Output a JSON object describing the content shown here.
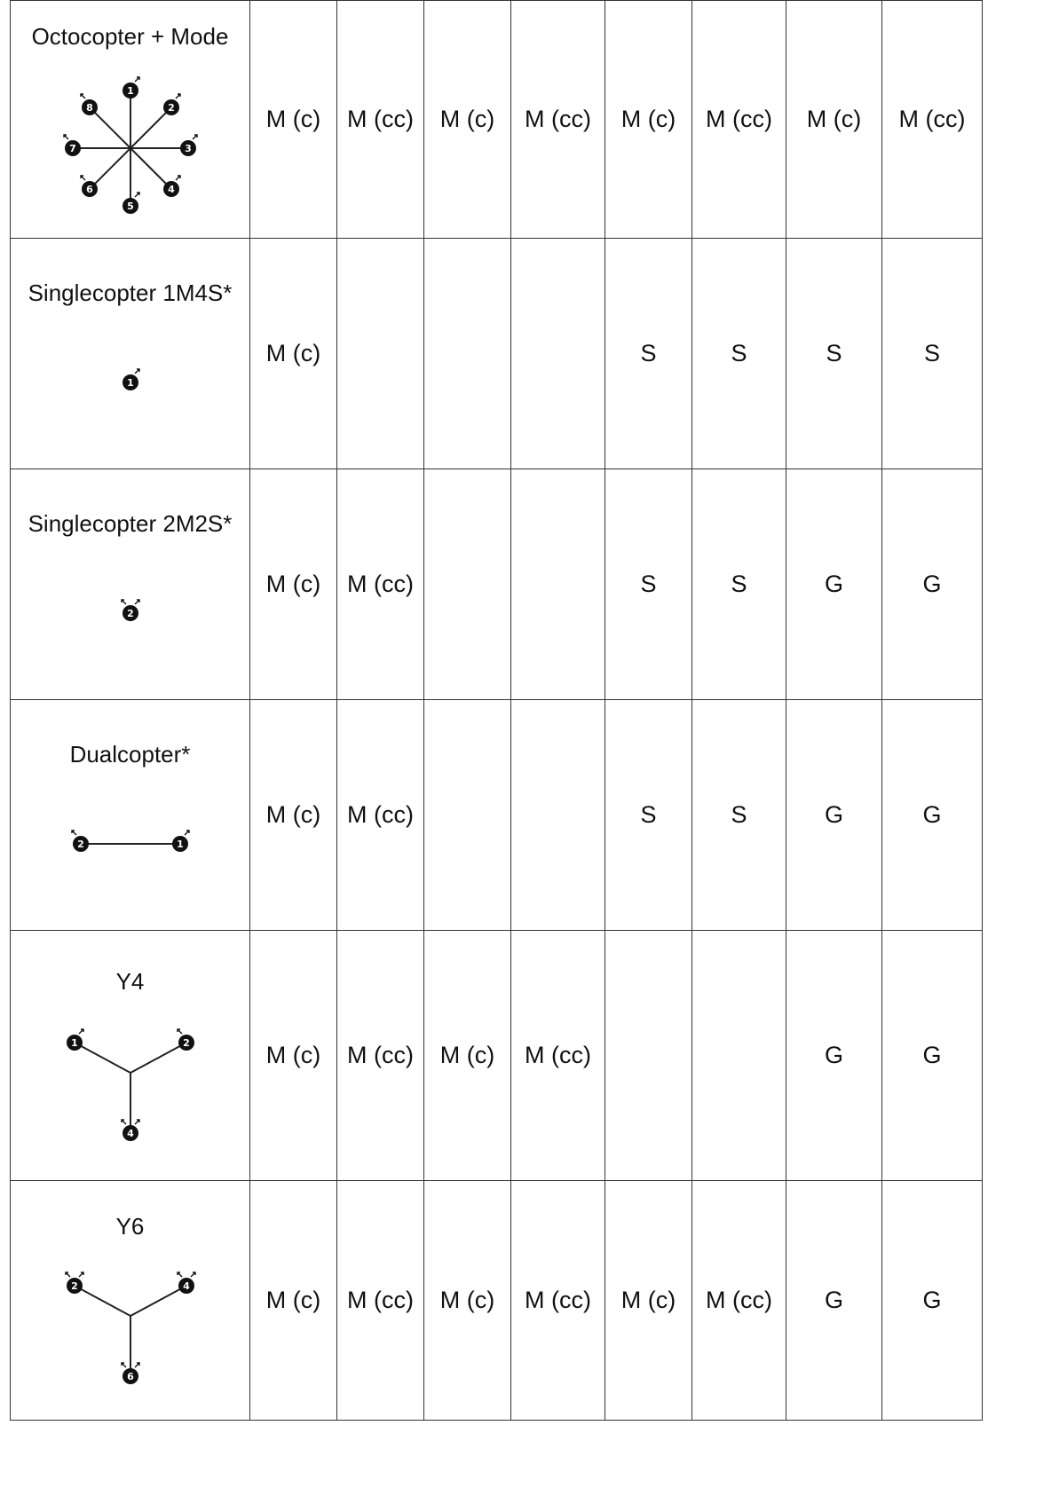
{
  "rows": [
    {
      "name": "Octocopter + Mode",
      "diagram": "octocopter-plus",
      "motor_labels": [
        "1",
        "2",
        "3",
        "4",
        "5",
        "6",
        "7",
        "8"
      ],
      "cells": [
        "M (c)",
        "M (cc)",
        "M (c)",
        "M (cc)",
        "M (c)",
        "M (cc)",
        "M (c)",
        "M (cc)"
      ]
    },
    {
      "name": "Singlecopter 1M4S*",
      "diagram": "singlecopter-1m4s",
      "motor_labels": [
        "1"
      ],
      "cells": [
        "M (c)",
        "",
        "",
        "",
        "S",
        "S",
        "S",
        "S"
      ]
    },
    {
      "name": "Singlecopter 2M2S*",
      "diagram": "singlecopter-2m2s",
      "motor_labels": [
        "2"
      ],
      "cells": [
        "M (c)",
        "M (cc)",
        "",
        "",
        "S",
        "S",
        "G",
        "G"
      ]
    },
    {
      "name": "Dualcopter*",
      "diagram": "dualcopter",
      "motor_labels": [
        "2",
        "1"
      ],
      "cells": [
        "M (c)",
        "M (cc)",
        "",
        "",
        "S",
        "S",
        "G",
        "G"
      ]
    },
    {
      "name": "Y4",
      "diagram": "y4",
      "motor_labels": [
        "1",
        "2",
        "4"
      ],
      "cells": [
        "M (c)",
        "M (cc)",
        "M (c)",
        "M (cc)",
        "",
        "",
        "G",
        "G"
      ]
    },
    {
      "name": "Y6",
      "diagram": "y6",
      "motor_labels": [
        "2",
        "4",
        "6"
      ],
      "cells": [
        "M (c)",
        "M (cc)",
        "M (c)",
        "M (cc)",
        "M (c)",
        "M (cc)",
        "G",
        "G"
      ]
    }
  ]
}
